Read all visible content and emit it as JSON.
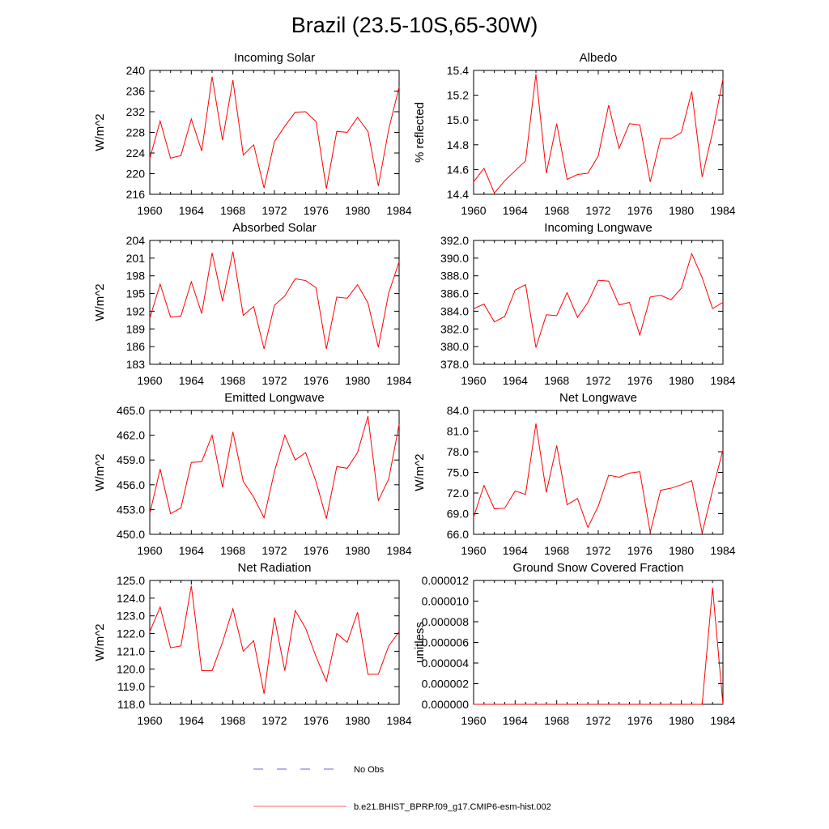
{
  "title": "Brazil (23.5-10S,65-30W)",
  "legend": {
    "entries": [
      {
        "label": "No Obs",
        "color": "#6666cc",
        "style": "dashed"
      },
      {
        "label": "b.e21.BHIST_BPRP.f09_g17.CMIP6-esm-hist.002",
        "color": "#ff6666",
        "style": "solid"
      }
    ]
  },
  "colors": {
    "model_line": "#ff0000",
    "frame": "#000000"
  },
  "chart_data": [
    {
      "type": "line",
      "title": "Incoming Solar",
      "ylabel": "W/m^2",
      "xlim": [
        1960,
        1984
      ],
      "ylim": [
        216,
        240
      ],
      "xticks": [
        1960,
        1964,
        1968,
        1972,
        1976,
        1980,
        1984
      ],
      "yticks": [
        216,
        220,
        224,
        228,
        232,
        236,
        240
      ],
      "ytick_labels": [
        "216",
        "220",
        "224",
        "228",
        "232",
        "236",
        "240"
      ],
      "series": [
        {
          "name": "b.e21.BHIST_BPRP.f09_g17.CMIP6-esm-hist.002",
          "x": [
            1960,
            1961,
            1962,
            1963,
            1964,
            1965,
            1966,
            1967,
            1968,
            1969,
            1970,
            1971,
            1972,
            1973,
            1974,
            1975,
            1976,
            1977,
            1978,
            1979,
            1980,
            1981,
            1982,
            1983,
            1984
          ],
          "values": [
            222.9,
            230.2,
            223.0,
            223.5,
            230.6,
            224.4,
            238.8,
            226.5,
            238.1,
            223.6,
            225.6,
            217.2,
            226.2,
            229.2,
            231.9,
            232.0,
            230.1,
            217.1,
            228.2,
            228.0,
            230.9,
            228.2,
            217.6,
            228.6,
            236.8
          ]
        }
      ]
    },
    {
      "type": "line",
      "title": "Albedo",
      "ylabel": "% reflected",
      "xlim": [
        1960,
        1984
      ],
      "ylim": [
        14.4,
        15.4
      ],
      "xticks": [
        1960,
        1964,
        1968,
        1972,
        1976,
        1980,
        1984
      ],
      "yticks": [
        14.4,
        14.6,
        14.8,
        15.0,
        15.2,
        15.4
      ],
      "ytick_labels": [
        "14.4",
        "14.6",
        "14.8",
        "15.0",
        "15.2",
        "15.4"
      ],
      "series": [
        {
          "name": "b.e21.BHIST_BPRP.f09_g17.CMIP6-esm-hist.002",
          "x": [
            1960,
            1961,
            1962,
            1963,
            1964,
            1965,
            1966,
            1967,
            1968,
            1969,
            1970,
            1971,
            1972,
            1973,
            1974,
            1975,
            1976,
            1977,
            1978,
            1979,
            1980,
            1981,
            1982,
            1983,
            1984
          ],
          "values": [
            14.5,
            14.61,
            14.41,
            14.51,
            14.59,
            14.67,
            15.37,
            14.57,
            14.97,
            14.52,
            14.56,
            14.57,
            14.71,
            15.12,
            14.77,
            14.97,
            14.96,
            14.5,
            14.85,
            14.85,
            14.9,
            15.23,
            14.54,
            14.9,
            15.33
          ]
        }
      ]
    },
    {
      "type": "line",
      "title": "Absorbed Solar",
      "ylabel": "W/m^2",
      "xlim": [
        1960,
        1984
      ],
      "ylim": [
        183,
        204
      ],
      "xticks": [
        1960,
        1964,
        1968,
        1972,
        1976,
        1980,
        1984
      ],
      "yticks": [
        183,
        186,
        189,
        192,
        195,
        198,
        201,
        204
      ],
      "ytick_labels": [
        "183",
        "186",
        "189",
        "192",
        "195",
        "198",
        "201",
        "204"
      ],
      "series": [
        {
          "name": "b.e21.BHIST_BPRP.f09_g17.CMIP6-esm-hist.002",
          "x": [
            1960,
            1961,
            1962,
            1963,
            1964,
            1965,
            1966,
            1967,
            1968,
            1969,
            1970,
            1971,
            1972,
            1973,
            1974,
            1975,
            1976,
            1977,
            1978,
            1979,
            1980,
            1981,
            1982,
            1983,
            1984
          ],
          "values": [
            190.8,
            196.6,
            191.0,
            191.2,
            197.0,
            191.6,
            201.9,
            193.7,
            202.1,
            191.3,
            192.8,
            185.6,
            193.0,
            194.6,
            197.5,
            197.2,
            196.0,
            185.6,
            194.4,
            194.2,
            196.5,
            193.4,
            185.9,
            195.1,
            200.4
          ]
        }
      ]
    },
    {
      "type": "line",
      "title": "Incoming Longwave",
      "ylabel": "",
      "xlim": [
        1960,
        1984
      ],
      "ylim": [
        378,
        392
      ],
      "xticks": [
        1960,
        1964,
        1968,
        1972,
        1976,
        1980,
        1984
      ],
      "yticks": [
        378,
        380,
        382,
        384,
        386,
        388,
        390,
        392
      ],
      "ytick_labels": [
        "378.0",
        "380.0",
        "382.0",
        "384.0",
        "386.0",
        "388.0",
        "390.0",
        "392.0"
      ],
      "series": [
        {
          "name": "b.e21.BHIST_BPRP.f09_g17.CMIP6-esm-hist.002",
          "x": [
            1960,
            1961,
            1962,
            1963,
            1964,
            1965,
            1966,
            1967,
            1968,
            1969,
            1970,
            1971,
            1972,
            1973,
            1974,
            1975,
            1976,
            1977,
            1978,
            1979,
            1980,
            1981,
            1982,
            1983,
            1984
          ],
          "values": [
            384.3,
            384.8,
            382.8,
            383.4,
            386.4,
            387.0,
            379.9,
            383.6,
            383.5,
            386.1,
            383.3,
            385.0,
            387.5,
            387.4,
            384.7,
            385.0,
            381.3,
            385.6,
            385.8,
            385.3,
            386.6,
            390.5,
            387.8,
            384.3,
            385.0
          ]
        }
      ]
    },
    {
      "type": "line",
      "title": "Emitted Longwave",
      "ylabel": "W/m^2",
      "xlim": [
        1960,
        1984
      ],
      "ylim": [
        450,
        465
      ],
      "xticks": [
        1960,
        1964,
        1968,
        1972,
        1976,
        1980,
        1984
      ],
      "yticks": [
        450,
        453,
        456,
        459,
        462,
        465
      ],
      "ytick_labels": [
        "450.0",
        "453.0",
        "456.0",
        "459.0",
        "462.0",
        "465.0"
      ],
      "series": [
        {
          "name": "b.e21.BHIST_BPRP.f09_g17.CMIP6-esm-hist.002",
          "x": [
            1960,
            1961,
            1962,
            1963,
            1964,
            1965,
            1966,
            1967,
            1968,
            1969,
            1970,
            1971,
            1972,
            1973,
            1974,
            1975,
            1976,
            1977,
            1978,
            1979,
            1980,
            1981,
            1982,
            1983,
            1984
          ],
          "values": [
            452.5,
            457.9,
            452.5,
            453.2,
            458.7,
            458.8,
            462.0,
            455.7,
            462.4,
            456.4,
            454.5,
            452.0,
            457.6,
            462.0,
            459.0,
            459.9,
            456.4,
            451.9,
            458.2,
            458.0,
            459.9,
            464.3,
            454.1,
            456.7,
            463.3
          ]
        }
      ]
    },
    {
      "type": "line",
      "title": "Net Longwave",
      "ylabel": "W/m^2",
      "xlim": [
        1960,
        1984
      ],
      "ylim": [
        66,
        84
      ],
      "xticks": [
        1960,
        1964,
        1968,
        1972,
        1976,
        1980,
        1984
      ],
      "yticks": [
        66,
        69,
        72,
        75,
        78,
        81,
        84
      ],
      "ytick_labels": [
        "66.0",
        "69.0",
        "72.0",
        "75.0",
        "78.0",
        "81.0",
        "84.0"
      ],
      "series": [
        {
          "name": "b.e21.BHIST_BPRP.f09_g17.CMIP6-esm-hist.002",
          "x": [
            1960,
            1961,
            1962,
            1963,
            1964,
            1965,
            1966,
            1967,
            1968,
            1969,
            1970,
            1971,
            1972,
            1973,
            1974,
            1975,
            1976,
            1977,
            1978,
            1979,
            1980,
            1981,
            1982,
            1983,
            1984
          ],
          "values": [
            68.5,
            73.1,
            69.7,
            69.8,
            72.3,
            71.8,
            82.1,
            72.1,
            78.9,
            70.3,
            71.2,
            67.0,
            70.1,
            74.6,
            74.3,
            74.9,
            75.1,
            66.3,
            72.4,
            72.7,
            73.2,
            73.8,
            66.2,
            72.4,
            78.3
          ]
        }
      ]
    },
    {
      "type": "line",
      "title": "Net Radiation",
      "ylabel": "W/m^2",
      "xlim": [
        1960,
        1984
      ],
      "ylim": [
        118,
        125
      ],
      "xticks": [
        1960,
        1964,
        1968,
        1972,
        1976,
        1980,
        1984
      ],
      "yticks": [
        118,
        119,
        120,
        121,
        122,
        123,
        124,
        125
      ],
      "ytick_labels": [
        "118.0",
        "119.0",
        "120.0",
        "121.0",
        "122.0",
        "123.0",
        "124.0",
        "125.0"
      ],
      "series": [
        {
          "name": "b.e21.BHIST_BPRP.f09_g17.CMIP6-esm-hist.002",
          "x": [
            1960,
            1961,
            1962,
            1963,
            1964,
            1965,
            1966,
            1967,
            1968,
            1969,
            1970,
            1971,
            1972,
            1973,
            1974,
            1975,
            1976,
            1977,
            1978,
            1979,
            1980,
            1981,
            1982,
            1983,
            1984
          ],
          "values": [
            122.1,
            123.5,
            121.2,
            121.3,
            124.7,
            119.9,
            119.9,
            121.5,
            123.4,
            121.0,
            121.6,
            118.6,
            122.9,
            119.9,
            123.3,
            122.3,
            120.7,
            119.3,
            122.0,
            121.5,
            123.2,
            119.7,
            119.7,
            121.3,
            122.1
          ]
        }
      ]
    },
    {
      "type": "line",
      "title": "Ground Snow Covered Fraction",
      "ylabel": "unitless",
      "xlim": [
        1960,
        1984
      ],
      "ylim": [
        0,
        1.2e-05
      ],
      "xticks": [
        1960,
        1964,
        1968,
        1972,
        1976,
        1980,
        1984
      ],
      "yticks": [
        0,
        2e-06,
        4e-06,
        6e-06,
        8e-06,
        1e-05,
        1.2e-05
      ],
      "ytick_labels": [
        "0.000000",
        "0.000002",
        "0.000004",
        "0.000006",
        "0.000008",
        "0.000010",
        "0.000012"
      ],
      "series": [
        {
          "name": "b.e21.BHIST_BPRP.f09_g17.CMIP6-esm-hist.002",
          "x": [
            1960,
            1961,
            1962,
            1963,
            1964,
            1965,
            1966,
            1967,
            1968,
            1969,
            1970,
            1971,
            1972,
            1973,
            1974,
            1975,
            1976,
            1977,
            1978,
            1979,
            1980,
            1981,
            1982,
            1983,
            1984
          ],
          "values": [
            0,
            0,
            0,
            0,
            0,
            0,
            0,
            0,
            0,
            0,
            0,
            0,
            0,
            0,
            0,
            0,
            0,
            0,
            0,
            0,
            0,
            0,
            0,
            1.13e-05,
            0
          ]
        }
      ]
    }
  ]
}
